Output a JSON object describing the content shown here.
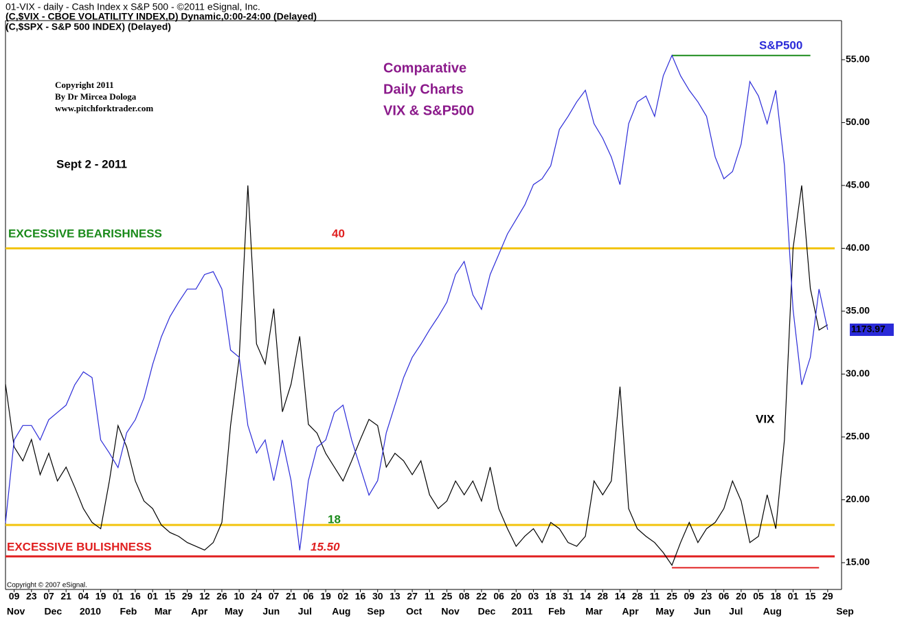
{
  "chart_data": {
    "type": "line",
    "header": [
      "01-VIX - daily - Cash Index x  S&P 500 - ©2011 eSignal, Inc.",
      "(C,$VIX - CBOE VOLATILITY INDEX,D) Dynamic,0:00-24:00 (Delayed)",
      "(C,$SPX - S&P 500 INDEX)  (Delayed)"
    ],
    "title": [
      "Comparative",
      "Daily Charts",
      "VIX & S&P500"
    ],
    "copyright": [
      "Copyright 2011",
      "By Dr Mircea Dologa",
      "www.pitchforktrader.com"
    ],
    "date_note": "Sept  2 - 2011",
    "footer": "Copyright © 2007 eSignal.",
    "xlim": [
      0,
      96.6
    ],
    "ylim": [
      12.87,
      58.11
    ],
    "y2lim": [
      995,
      1387
    ],
    "yticks": [
      {
        "value": 15,
        "label": "15.00"
      },
      {
        "value": 20,
        "label": "20.00"
      },
      {
        "value": 25,
        "label": "25.00"
      },
      {
        "value": 30,
        "label": "30.00"
      },
      {
        "value": 35,
        "label": "35.00"
      },
      {
        "value": 40,
        "label": "40.00"
      },
      {
        "value": 45,
        "label": "45.00"
      },
      {
        "value": 50,
        "label": "50.00"
      },
      {
        "value": 55,
        "label": "55.00"
      }
    ],
    "xticks": [
      {
        "value": 1,
        "label": "09"
      },
      {
        "value": 3,
        "label": "23"
      },
      {
        "value": 5,
        "label": "07"
      },
      {
        "value": 7,
        "label": "21"
      },
      {
        "value": 9,
        "label": "04"
      },
      {
        "value": 11,
        "label": "19"
      },
      {
        "value": 13,
        "label": "01"
      },
      {
        "value": 15,
        "label": "16"
      },
      {
        "value": 17,
        "label": "01"
      },
      {
        "value": 19,
        "label": "15"
      },
      {
        "value": 21,
        "label": "29"
      },
      {
        "value": 23,
        "label": "12"
      },
      {
        "value": 25,
        "label": "26"
      },
      {
        "value": 27,
        "label": "10"
      },
      {
        "value": 29,
        "label": "24"
      },
      {
        "value": 31,
        "label": "07"
      },
      {
        "value": 33,
        "label": "21"
      },
      {
        "value": 35,
        "label": "06"
      },
      {
        "value": 37,
        "label": "19"
      },
      {
        "value": 39,
        "label": "02"
      },
      {
        "value": 41,
        "label": "16"
      },
      {
        "value": 43,
        "label": "30"
      },
      {
        "value": 45,
        "label": "13"
      },
      {
        "value": 47,
        "label": "27"
      },
      {
        "value": 49,
        "label": "11"
      },
      {
        "value": 51,
        "label": "25"
      },
      {
        "value": 53,
        "label": "08"
      },
      {
        "value": 55,
        "label": "22"
      },
      {
        "value": 57,
        "label": "06"
      },
      {
        "value": 59,
        "label": "20"
      },
      {
        "value": 61,
        "label": "03"
      },
      {
        "value": 63,
        "label": "18"
      },
      {
        "value": 65,
        "label": "31"
      },
      {
        "value": 67,
        "label": "14"
      },
      {
        "value": 69,
        "label": "28"
      },
      {
        "value": 71,
        "label": "14"
      },
      {
        "value": 73,
        "label": "28"
      },
      {
        "value": 75,
        "label": "11"
      },
      {
        "value": 77,
        "label": "25"
      },
      {
        "value": 79,
        "label": "09"
      },
      {
        "value": 81,
        "label": "23"
      },
      {
        "value": 83,
        "label": "06"
      },
      {
        "value": 85,
        "label": "20"
      },
      {
        "value": 87,
        "label": "05"
      },
      {
        "value": 89,
        "label": "18"
      },
      {
        "value": 91,
        "label": "01"
      },
      {
        "value": 93,
        "label": "15"
      },
      {
        "value": 95,
        "label": "29"
      }
    ],
    "month_labels": [
      {
        "value": 1.2,
        "label": "Nov"
      },
      {
        "value": 5.5,
        "label": "Dec"
      },
      {
        "value": 9.8,
        "label": "2010"
      },
      {
        "value": 14.2,
        "label": "Feb"
      },
      {
        "value": 18.2,
        "label": "Mar"
      },
      {
        "value": 22.4,
        "label": "Apr"
      },
      {
        "value": 26.4,
        "label": "May"
      },
      {
        "value": 30.7,
        "label": "Jun"
      },
      {
        "value": 34.6,
        "label": "Jul"
      },
      {
        "value": 38.8,
        "label": "Aug"
      },
      {
        "value": 42.8,
        "label": "Sep"
      },
      {
        "value": 47.2,
        "label": "Oct"
      },
      {
        "value": 51.4,
        "label": "Nov"
      },
      {
        "value": 55.6,
        "label": "Dec"
      },
      {
        "value": 59.7,
        "label": "2011"
      },
      {
        "value": 63.7,
        "label": "Feb"
      },
      {
        "value": 68,
        "label": "Mar"
      },
      {
        "value": 72.2,
        "label": "Apr"
      },
      {
        "value": 76.2,
        "label": "May"
      },
      {
        "value": 80.5,
        "label": "Jun"
      },
      {
        "value": 84.4,
        "label": "Jul"
      },
      {
        "value": 88.6,
        "label": "Aug"
      },
      {
        "value": 97,
        "label": "Sep"
      }
    ],
    "series": [
      {
        "name": "VIX",
        "color": "#000000",
        "values": [
          29.2,
          24.2,
          23.1,
          24.8,
          22,
          23.7,
          21.5,
          22.6,
          21,
          19.3,
          18.2,
          17.7,
          21.5,
          25.9,
          24.2,
          21.5,
          19.9,
          19.3,
          18,
          17.4,
          17.1,
          16.6,
          16.3,
          16,
          16.6,
          18.2,
          25.9,
          31.3,
          45,
          32.4,
          30.8,
          35.2,
          27,
          29.2,
          33,
          26,
          25.3,
          23.7,
          22.6,
          21.5,
          23.1,
          24.8,
          26.4,
          25.9,
          22.6,
          23.7,
          23.1,
          22,
          23.1,
          20.4,
          19.3,
          19.9,
          21.5,
          20.4,
          21.5,
          19.9,
          22.6,
          19.3,
          17.7,
          16.3,
          17.1,
          17.7,
          16.6,
          18.2,
          17.7,
          16.6,
          16.3,
          17.1,
          21.5,
          20.4,
          21.5,
          29,
          19.3,
          17.7,
          17.1,
          16.6,
          15.8,
          14.8,
          16.6,
          18.2,
          16.6,
          17.7,
          18.2,
          19.3,
          21.5,
          19.9,
          16.6,
          17.1,
          20.4,
          17.7,
          24.8,
          40,
          45,
          36.8,
          33.5,
          33.92
        ]
      },
      {
        "name": "S&P500",
        "color": "#2a2ad8",
        "axis": "y2",
        "values": [
          1041,
          1098,
          1108,
          1108,
          1098,
          1112,
          1117,
          1122,
          1136,
          1145,
          1141,
          1098,
          1089,
          1079,
          1103,
          1112,
          1127,
          1150,
          1169,
          1183,
          1193,
          1202,
          1202,
          1212,
          1214,
          1202,
          1160,
          1155,
          1108,
          1089,
          1098,
          1070,
          1098,
          1070,
          1022,
          1070,
          1093,
          1098,
          1117,
          1122,
          1098,
          1079,
          1060,
          1070,
          1103,
          1122,
          1141,
          1155,
          1164,
          1174,
          1183,
          1193,
          1212,
          1221,
          1198,
          1188,
          1212,
          1226,
          1240,
          1250,
          1260,
          1274,
          1278,
          1287,
          1312,
          1321,
          1331,
          1339,
          1316,
          1306,
          1293,
          1274,
          1316,
          1331,
          1335,
          1321,
          1349,
          1363,
          1349,
          1339,
          1331,
          1321,
          1293,
          1278,
          1283,
          1302,
          1345,
          1335,
          1316,
          1339,
          1287,
          1188,
          1136,
          1155,
          1202,
          1173.97
        ]
      }
    ],
    "levels": [
      {
        "value": 40,
        "label": "40",
        "note": "EXCESSIVE BEARISHNESS",
        "color": "#f2c40f"
      },
      {
        "value": 18,
        "label": "18",
        "color": "#f2c40f"
      },
      {
        "value": 15.5,
        "label": "15.50",
        "note": "EXCESSIVE BULISHNESS",
        "color": "#e02020"
      }
    ],
    "extremes": [
      {
        "value": 14.6,
        "color": "#e02020",
        "xlim": [
          77,
          94
        ]
      },
      {
        "value": 1363,
        "axis": "y2",
        "color": "#1a8a1a",
        "xlim": [
          77,
          93
        ]
      }
    ]
  }
}
